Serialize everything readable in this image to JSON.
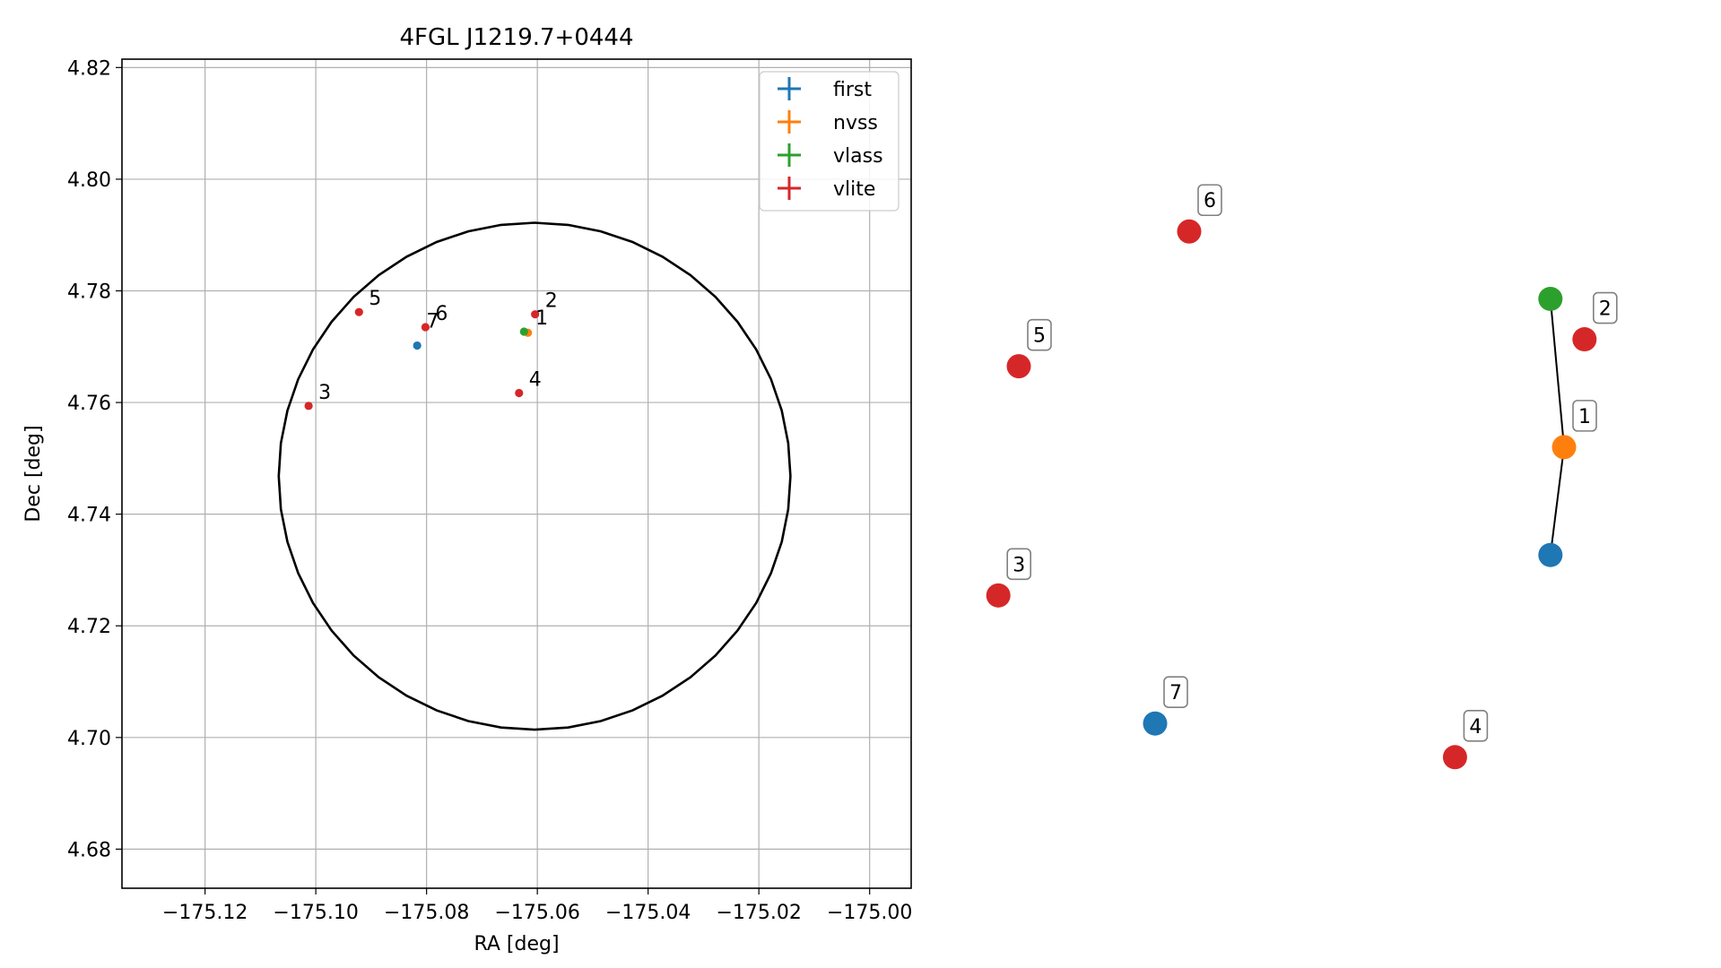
{
  "chart_data": [
    {
      "type": "scatter",
      "title": "4FGL J1219.7+0444",
      "xlabel": "RA [deg]",
      "ylabel": "Dec [deg]",
      "xlim": [
        -175.135,
        -174.9925
      ],
      "ylim": [
        4.673,
        4.8215
      ],
      "xticks": [
        -175.12,
        -175.1,
        -175.08,
        -175.06,
        -175.04,
        -175.02,
        -175.0
      ],
      "xtick_labels": [
        "−175.12",
        "−175.10",
        "−175.08",
        "−175.06",
        "−175.04",
        "−175.02",
        "−175.00"
      ],
      "yticks": [
        4.68,
        4.7,
        4.72,
        4.74,
        4.76,
        4.78,
        4.8,
        4.82
      ],
      "ytick_labels": [
        "4.68",
        "4.70",
        "4.72",
        "4.74",
        "4.76",
        "4.78",
        "4.80",
        "4.82"
      ],
      "grid": true,
      "legend_position": "top-right",
      "legend": [
        {
          "name": "first",
          "color": "#1f77b4"
        },
        {
          "name": "nvss",
          "color": "#ff7f0e"
        },
        {
          "name": "vlass",
          "color": "#2ca02c"
        },
        {
          "name": "vlite",
          "color": "#d62728"
        }
      ],
      "circle": {
        "center": [
          -175.0605,
          4.7468
        ],
        "ra_radius": 0.0462,
        "dec_radius": 0.0454
      },
      "points": [
        {
          "series": "first",
          "x": -175.0817,
          "y": 4.7702,
          "label": ""
        },
        {
          "series": "nvss",
          "x": -175.0617,
          "y": 4.7725,
          "label": ""
        },
        {
          "series": "vlass",
          "x": -175.0624,
          "y": 4.7727,
          "label": ""
        },
        {
          "series": "vlite",
          "x": -175.0604,
          "y": 4.7758,
          "label": "2"
        },
        {
          "series": "vlite",
          "x": -175.1013,
          "y": 4.7594,
          "label": "3"
        },
        {
          "series": "vlite",
          "x": -175.0633,
          "y": 4.7617,
          "label": "4"
        },
        {
          "series": "vlite",
          "x": -175.0922,
          "y": 4.7762,
          "label": "5"
        },
        {
          "series": "vlite",
          "x": -175.0802,
          "y": 4.7735,
          "label": "6"
        }
      ],
      "text_labels": [
        {
          "text": "1",
          "x": -175.0605,
          "y": 4.7733
        },
        {
          "text": "7",
          "x": -175.0802,
          "y": 4.7728
        }
      ]
    },
    {
      "type": "network",
      "nodes": [
        {
          "id": "1",
          "series": "nvss",
          "label": "1",
          "x": 0.9,
          "y": 0.44
        },
        {
          "id": "v",
          "series": "vlass",
          "label": "",
          "x": 0.88,
          "y": 0.22
        },
        {
          "id": "f",
          "series": "first",
          "label": "",
          "x": 0.88,
          "y": 0.6
        },
        {
          "id": "2",
          "series": "vlite",
          "label": "2",
          "x": 0.93,
          "y": 0.28
        },
        {
          "id": "3",
          "series": "vlite",
          "label": "3",
          "x": 0.07,
          "y": 0.66
        },
        {
          "id": "4",
          "series": "vlite",
          "label": "4",
          "x": 0.74,
          "y": 0.9
        },
        {
          "id": "5",
          "series": "vlite",
          "label": "5",
          "x": 0.1,
          "y": 0.32
        },
        {
          "id": "6",
          "series": "vlite",
          "label": "6",
          "x": 0.35,
          "y": 0.12
        },
        {
          "id": "7",
          "series": "first",
          "label": "7",
          "x": 0.3,
          "y": 0.85
        }
      ],
      "edges": [
        [
          "v",
          "1"
        ],
        [
          "1",
          "f"
        ]
      ]
    }
  ]
}
